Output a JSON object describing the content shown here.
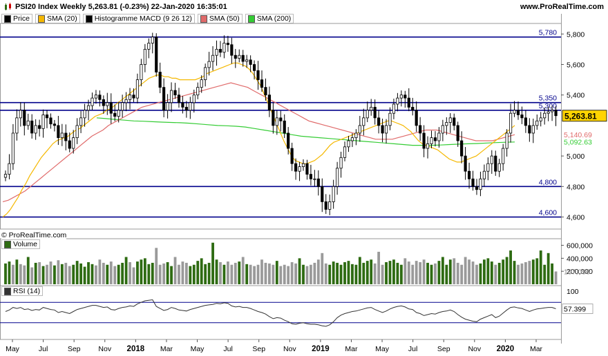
{
  "header": {
    "title": "PSI20 Index Weekly 5,263.81 (-0.23%) 22-Jan-2020 16:35:01",
    "site": "www.ProRealTime.com",
    "copyright": "© ProRealTime.com"
  },
  "colors": {
    "price_up": "#ffffff",
    "price_down": "#000000",
    "sma20": "#f5b800",
    "sma50": "#e06a6a",
    "sma200": "#33cc33",
    "level_line": "#00008b",
    "volume_up": "#2e6b12",
    "volume_down": "#9a9a9a",
    "rsi_line": "#333333"
  },
  "legend": [
    {
      "label": "Price",
      "swatch": "#000000"
    },
    {
      "label": "SMA (20)",
      "swatch": "#f5b800"
    },
    {
      "label": "Histogramme MACD (9 26 12)",
      "swatch": "#000000"
    },
    {
      "label": "SMA (50)",
      "swatch": "#e06a6a"
    },
    {
      "label": "SMA (200)",
      "swatch": "#33cc33"
    }
  ],
  "chart_data": [
    {
      "type": "candlestick",
      "title": "PSI20 Index Weekly",
      "ylim": [
        4530,
        5860
      ],
      "y_ticks": [
        "5,800",
        "5,600",
        "5,400",
        "5,000",
        "4,800",
        "4,600"
      ],
      "y_tick_values": [
        5800,
        5600,
        5400,
        5000,
        4800,
        4600
      ],
      "horizontal_levels": [
        {
          "label": "5,780",
          "value": 5780
        },
        {
          "label": "5,350",
          "value": 5350
        },
        {
          "label": "5,300",
          "value": 5300
        },
        {
          "label": "4,800",
          "value": 4800
        },
        {
          "label": "4,600",
          "value": 4600
        }
      ],
      "last_price_label": "5,263.81",
      "sma_labels": [
        {
          "label": "5,140.69",
          "value": 5140.69,
          "color": "#e06a6a"
        },
        {
          "label": "5,092.63",
          "value": 5092.63,
          "color": "#33cc33"
        }
      ],
      "x_tick_labels": [
        "May",
        "Jul",
        "Sep",
        "Nov",
        "2018",
        "Mar",
        "May",
        "Jul",
        "Sep",
        "Nov",
        "2019",
        "Mar",
        "May",
        "Jul",
        "Sep",
        "Nov",
        "2020",
        "Mar"
      ],
      "x_tick_bold": [
        "2018",
        "2019",
        "2020"
      ],
      "close": [
        4880,
        4950,
        5150,
        5250,
        5300,
        5200,
        5230,
        5150,
        5200,
        5180,
        5270,
        5250,
        5210,
        5200,
        5120,
        5150,
        5100,
        5050,
        5120,
        5200,
        5250,
        5300,
        5330,
        5380,
        5400,
        5370,
        5330,
        5350,
        5280,
        5260,
        5300,
        5350,
        5370,
        5400,
        5380,
        5500,
        5600,
        5700,
        5740,
        5780,
        5550,
        5450,
        5300,
        5350,
        5430,
        5400,
        5350,
        5320,
        5300,
        5350,
        5400,
        5450,
        5500,
        5580,
        5620,
        5660,
        5700,
        5680,
        5740,
        5730,
        5660,
        5640,
        5660,
        5620,
        5630,
        5600,
        5560,
        5500,
        5450,
        5400,
        5300,
        5200,
        5250,
        5230,
        5150,
        5050,
        4950,
        4900,
        4930,
        4950,
        4880,
        4850,
        4850,
        4800,
        4700,
        4650,
        4700,
        4800,
        4920,
        4990,
        5060,
        5100,
        5120,
        5150,
        5200,
        5250,
        5300,
        5320,
        5250,
        5200,
        5150,
        5200,
        5280,
        5340,
        5380,
        5400,
        5380,
        5320,
        5300,
        5200,
        5150,
        5050,
        5080,
        5120,
        5100,
        5150,
        5200,
        5220,
        5250,
        5200,
        5100,
        5000,
        4900,
        4850,
        4800,
        4780,
        4850,
        4900,
        4950,
        5000,
        4900,
        4950,
        5050,
        5150,
        5280,
        5300,
        5270,
        5250,
        5200,
        5150,
        5200,
        5230,
        5250,
        5280,
        5290,
        5300,
        5264
      ],
      "sma20": [
        4600,
        4620,
        4650,
        4690,
        4730,
        4780,
        4820,
        4870,
        4910,
        4950,
        4990,
        5020,
        5050,
        5080,
        5100,
        5110,
        5120,
        5130,
        5150,
        5170,
        5180,
        5200,
        5220,
        5240,
        5260,
        5270,
        5280,
        5300,
        5310,
        5330,
        5350,
        5370,
        5390,
        5410,
        5430,
        5450,
        5470,
        5490,
        5510,
        5520,
        5530,
        5530,
        5520,
        5520,
        5510,
        5510,
        5500,
        5500,
        5500,
        5500,
        5500,
        5510,
        5520,
        5540,
        5550,
        5560,
        5570,
        5580,
        5590,
        5600,
        5610,
        5610,
        5600,
        5590,
        5570,
        5540,
        5500,
        5460,
        5400,
        5340,
        5280,
        5220,
        5160,
        5100,
        5050,
        5000,
        4970,
        4960,
        4950,
        4950,
        4960,
        4970,
        4990,
        5010,
        5040,
        5070,
        5090,
        5100,
        5110,
        5120,
        5130,
        5140,
        5150,
        5160,
        5170,
        5180,
        5190,
        5200,
        5210,
        5220,
        5230,
        5230,
        5220,
        5210,
        5200,
        5180,
        5160,
        5130,
        5100,
        5080,
        5070,
        5060,
        5050,
        5040,
        5020,
        5000,
        4980,
        4970,
        4960,
        4960,
        4970,
        4980,
        4990,
        5000,
        5020,
        5040,
        5060,
        5080,
        5100,
        5120,
        5140,
        5160,
        5180,
        5200
      ],
      "sma50": [
        4700,
        4710,
        4730,
        4750,
        4770,
        4800,
        4830,
        4860,
        4890,
        4920,
        4950,
        4980,
        5010,
        5040,
        5070,
        5100,
        5130,
        5150,
        5170,
        5200,
        5220,
        5240,
        5260,
        5280,
        5300,
        5320,
        5330,
        5340,
        5350,
        5360,
        5370,
        5380,
        5390,
        5400,
        5410,
        5420,
        5430,
        5440,
        5450,
        5460,
        5470,
        5480,
        5470,
        5460,
        5450,
        5430,
        5410,
        5390,
        5370,
        5350,
        5330,
        5310,
        5290,
        5270,
        5250,
        5230,
        5220,
        5210,
        5200,
        5190,
        5180,
        5170,
        5160,
        5150,
        5140,
        5130,
        5120,
        5110,
        5110,
        5110,
        5110,
        5120,
        5130,
        5140,
        5150,
        5160,
        5170,
        5170,
        5170,
        5160,
        5150,
        5140,
        5130,
        5120,
        5110,
        5100,
        5100,
        5100,
        5100,
        5110,
        5120,
        5130,
        5140
      ],
      "sma200": [
        5250,
        5245,
        5240,
        5235,
        5230,
        5228,
        5225,
        5222,
        5220,
        5218,
        5215,
        5210,
        5205,
        5200,
        5198,
        5195,
        5190,
        5180,
        5170,
        5160,
        5150,
        5140,
        5130,
        5125,
        5120,
        5115,
        5110,
        5105,
        5100,
        5095,
        5090,
        5085,
        5080,
        5075,
        5070,
        5070,
        5070,
        5072,
        5075,
        5078,
        5080,
        5082,
        5085,
        5088,
        5090,
        5092
      ],
      "volume_panel": {
        "label": "Volume",
        "y_ticks": [
          "600,000",
          "400,000",
          "200,000"
        ],
        "y_tick_values": [
          600000,
          400000,
          200000
        ],
        "ylim": [
          0,
          680000
        ],
        "last_value_label": "197,096",
        "values": [
          320000,
          350000,
          300000,
          380000,
          310000,
          290000,
          420000,
          260000,
          330000,
          340000,
          280000,
          300000,
          350000,
          290000,
          370000,
          310000,
          330000,
          280000,
          300000,
          360000,
          320000,
          270000,
          340000,
          310000,
          290000,
          380000,
          330000,
          300000,
          350000,
          280000,
          300000,
          330000,
          420000,
          340000,
          260000,
          350000,
          380000,
          400000,
          310000,
          330000,
          560000,
          300000,
          320000,
          340000,
          280000,
          420000,
          300000,
          350000,
          330000,
          280000,
          300000,
          360000,
          400000,
          310000,
          330000,
          640000,
          380000,
          340000,
          300000,
          350000,
          300000,
          330000,
          350000,
          420000,
          310000,
          300000,
          280000,
          300000,
          380000,
          330000,
          320000,
          300000,
          360000,
          280000,
          300000,
          280000,
          340000,
          320000,
          400000,
          300000,
          280000,
          300000,
          330000,
          380000,
          480000,
          320000,
          300000,
          350000,
          330000,
          300000,
          340000,
          360000,
          310000,
          300000,
          420000,
          330000,
          360000,
          380000,
          320000,
          500000,
          300000,
          340000,
          360000,
          380000,
          330000,
          300000,
          400000,
          350000,
          300000,
          360000,
          340000,
          380000,
          330000,
          300000,
          320000,
          360000,
          420000,
          300000,
          380000,
          400000,
          330000,
          300000,
          420000,
          380000,
          350000,
          300000,
          320000,
          380000,
          400000,
          350000,
          300000,
          330000,
          380000,
          420000,
          520000,
          360000,
          300000,
          320000,
          340000,
          360000,
          380000,
          400000,
          520000,
          300000,
          480000,
          320000,
          197096
        ],
        "up": [
          1,
          1,
          0,
          1,
          0,
          0,
          1,
          0,
          1,
          0,
          1,
          0,
          0,
          1,
          0,
          1,
          0,
          0,
          1,
          1,
          1,
          1,
          1,
          1,
          0,
          0,
          0,
          1,
          0,
          0,
          1,
          1,
          1,
          0,
          0,
          1,
          1,
          1,
          1,
          1,
          0,
          0,
          0,
          1,
          1,
          0,
          0,
          0,
          0,
          1,
          1,
          1,
          1,
          1,
          1,
          1,
          1,
          0,
          1,
          0,
          0,
          0,
          1,
          0,
          1,
          0,
          0,
          0,
          0,
          0,
          0,
          0,
          1,
          0,
          0,
          0,
          0,
          0,
          1,
          1,
          0,
          0,
          0,
          0,
          0,
          0,
          1,
          1,
          1,
          1,
          1,
          1,
          1,
          1,
          1,
          1,
          1,
          1,
          0,
          0,
          0,
          1,
          1,
          1,
          1,
          1,
          0,
          0,
          0,
          0,
          0,
          0,
          1,
          1,
          0,
          1,
          1,
          1,
          1,
          0,
          0,
          0,
          0,
          0,
          0,
          0,
          1,
          1,
          1,
          1,
          0,
          1,
          1,
          1,
          1,
          1,
          0,
          0,
          0,
          0,
          1,
          1,
          1,
          1,
          1,
          1,
          0
        ]
      },
      "rsi_panel": {
        "label": "RSI (14)",
        "y_ticks": [
          "100"
        ],
        "y_tick_values": [
          100
        ],
        "ylim": [
          0,
          100
        ],
        "levels": [
          70,
          30
        ],
        "last_value_label": "57.399",
        "values": [
          52,
          55,
          60,
          58,
          60,
          56,
          57,
          54,
          56,
          55,
          60,
          58,
          56,
          55,
          50,
          52,
          50,
          48,
          52,
          56,
          58,
          60,
          62,
          64,
          64,
          62,
          60,
          61,
          56,
          55,
          58,
          60,
          61,
          63,
          62,
          67,
          70,
          73,
          74,
          75,
          62,
          58,
          54,
          56,
          60,
          58,
          55,
          54,
          53,
          56,
          58,
          60,
          62,
          64,
          65,
          66,
          68,
          67,
          69,
          68,
          63,
          61,
          62,
          60,
          60,
          58,
          55,
          52,
          50,
          47,
          42,
          38,
          40,
          39,
          35,
          32,
          28,
          27,
          29,
          30,
          28,
          27,
          27,
          26,
          24,
          23,
          26,
          32,
          40,
          45,
          48,
          50,
          52,
          53,
          55,
          57,
          59,
          60,
          56,
          53,
          50,
          53,
          57,
          60,
          62,
          63,
          61,
          57,
          56,
          50,
          48,
          44,
          46,
          48,
          47,
          50,
          52,
          53,
          55,
          52,
          46,
          41,
          37,
          35,
          33,
          32,
          37,
          40,
          43,
          46,
          40,
          43,
          49,
          55,
          60,
          61,
          59,
          58,
          55,
          52,
          55,
          57,
          58,
          59,
          60,
          60,
          57.4
        ]
      }
    }
  ]
}
